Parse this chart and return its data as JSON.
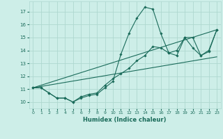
{
  "xlabel": "Humidex (Indice chaleur)",
  "background_color": "#cdeee8",
  "grid_color": "#aed8d0",
  "line_color": "#1a6b5a",
  "xlim": [
    -0.5,
    23.5
  ],
  "ylim": [
    9.5,
    17.8
  ],
  "xticks": [
    0,
    1,
    2,
    3,
    4,
    5,
    6,
    7,
    8,
    9,
    10,
    11,
    12,
    13,
    14,
    15,
    16,
    17,
    18,
    19,
    20,
    21,
    22,
    23
  ],
  "yticks": [
    10,
    11,
    12,
    13,
    14,
    15,
    16,
    17
  ],
  "line1_x": [
    0,
    1,
    2,
    3,
    4,
    5,
    6,
    7,
    8,
    9,
    10,
    11,
    12,
    13,
    14,
    15,
    16,
    17,
    18,
    19,
    20,
    21,
    22,
    23
  ],
  "line1_y": [
    11.1,
    11.1,
    10.7,
    10.3,
    10.3,
    10.0,
    10.3,
    10.5,
    10.6,
    11.1,
    11.6,
    13.7,
    15.3,
    16.5,
    17.35,
    17.2,
    15.3,
    13.8,
    13.6,
    15.0,
    15.0,
    13.6,
    13.9,
    15.6
  ],
  "line2_x": [
    0,
    1,
    2,
    3,
    4,
    5,
    6,
    7,
    8,
    9,
    10,
    11,
    12,
    13,
    14,
    15,
    16,
    17,
    18,
    19,
    20,
    21,
    22,
    23
  ],
  "line2_y": [
    11.1,
    11.1,
    10.7,
    10.3,
    10.3,
    10.0,
    10.4,
    10.6,
    10.7,
    11.3,
    11.8,
    12.2,
    12.6,
    13.2,
    13.6,
    14.3,
    14.2,
    13.8,
    14.0,
    15.0,
    14.2,
    13.6,
    14.0,
    15.6
  ],
  "line3_x": [
    0,
    23
  ],
  "line3_y": [
    11.1,
    15.6
  ],
  "line4_x": [
    0,
    23
  ],
  "line4_y": [
    11.1,
    13.5
  ]
}
